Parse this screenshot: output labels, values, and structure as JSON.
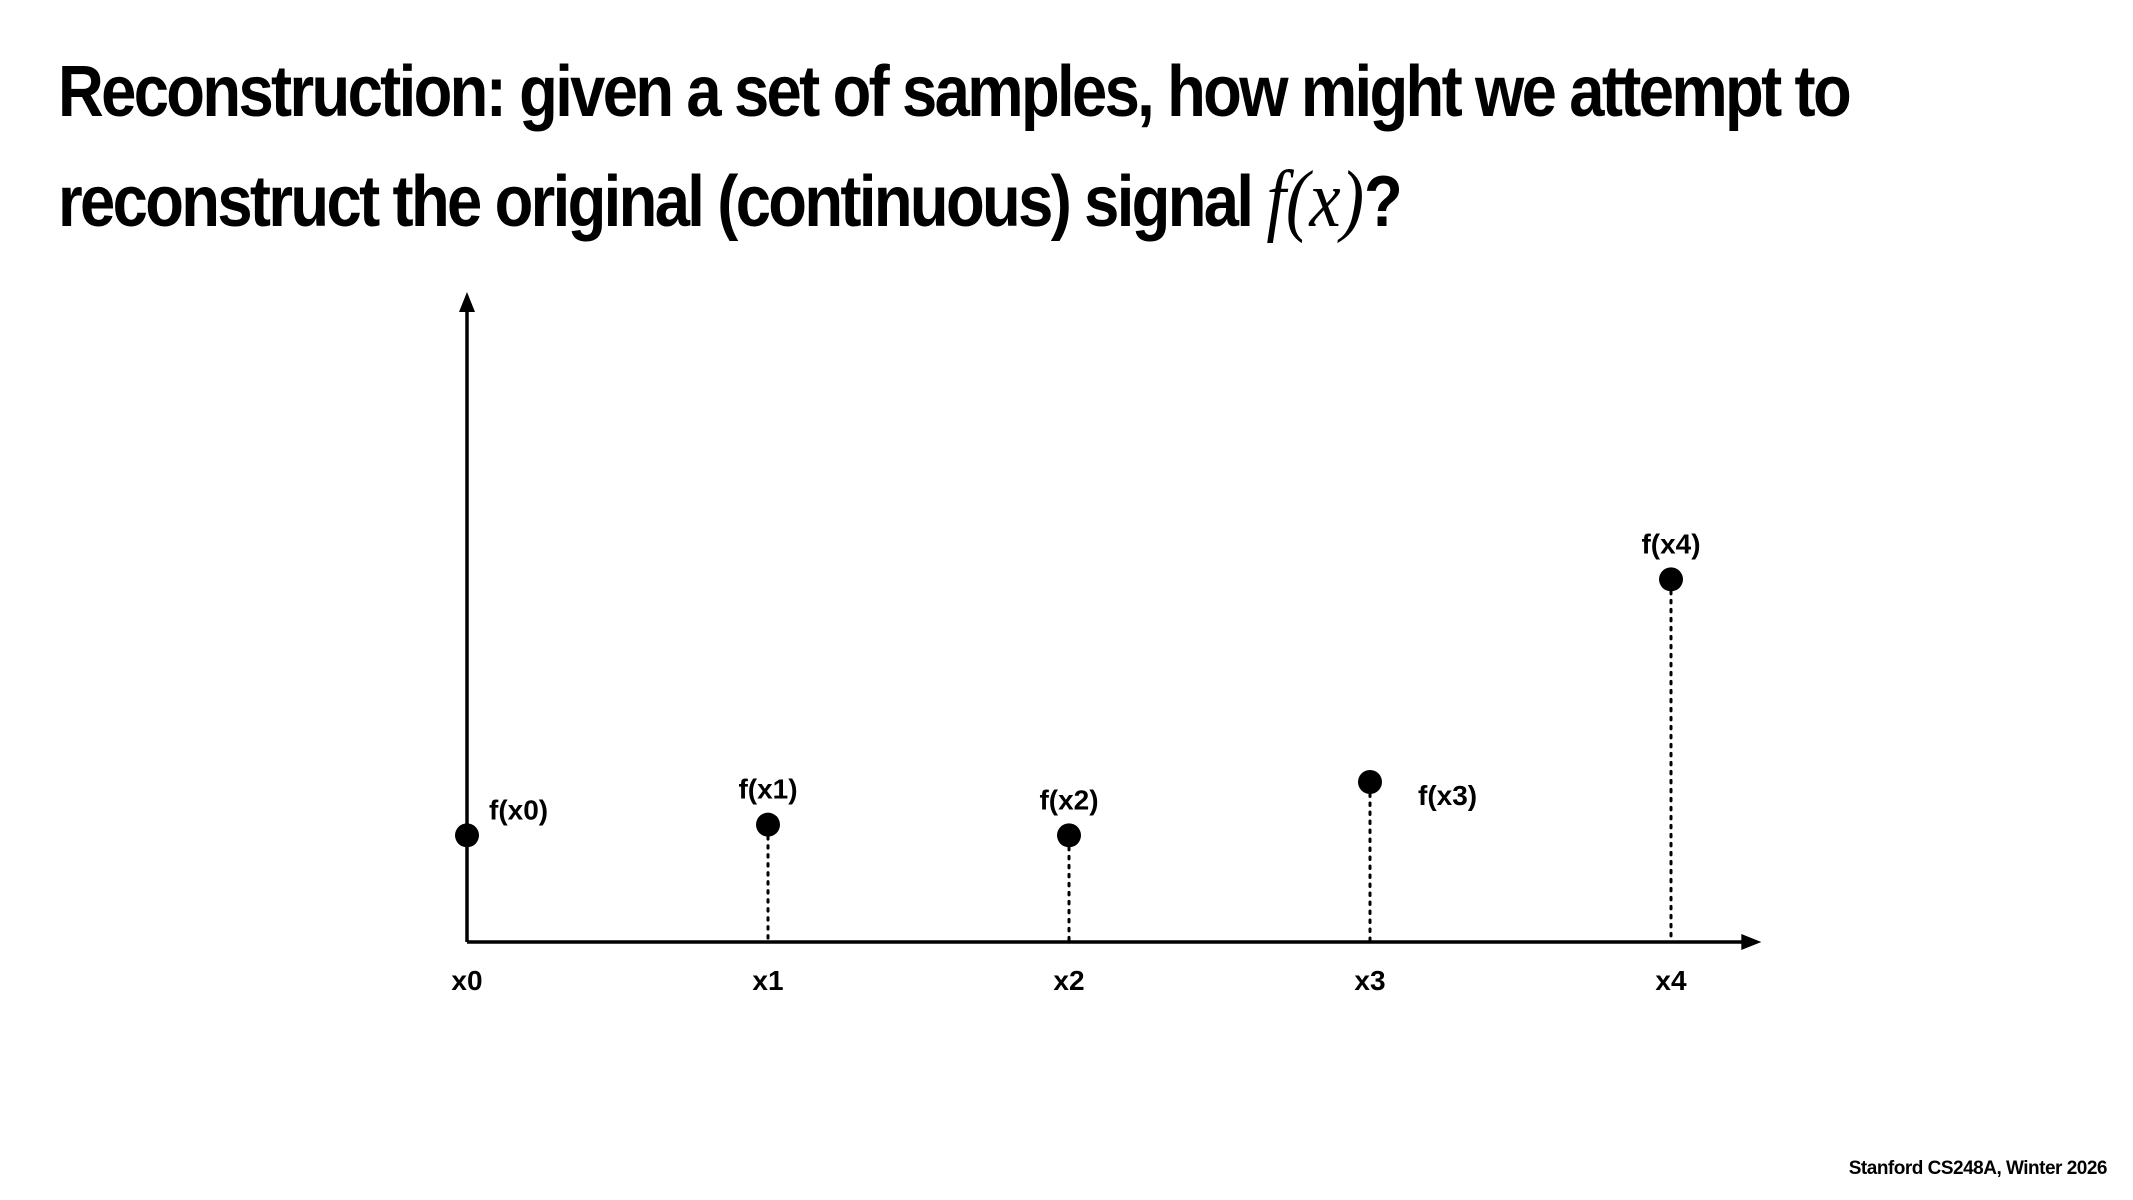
{
  "slide": {
    "title_line1": "Reconstruction: given a set of samples, how might we attempt to",
    "title_line2_prefix": "reconstruct the original (continuous) signal ",
    "title_math": "f(x)",
    "title_line2_suffix": "?",
    "footer": "Stanford CS248A, Winter 2026"
  },
  "chart_data": {
    "type": "scatter",
    "title": "",
    "xlabel": "",
    "ylabel": "",
    "grid": false,
    "legend": "none",
    "x_ticks": [
      "x0",
      "x1",
      "x2",
      "x3",
      "x4"
    ],
    "x": [
      0,
      1,
      2,
      3,
      4
    ],
    "y": [
      1.0,
      1.1,
      1.0,
      1.5,
      3.4
    ],
    "ylim": [
      0,
      6
    ],
    "xlim": [
      0,
      4.3
    ],
    "point_labels": [
      "f(x0)",
      "f(x1)",
      "f(x2)",
      "f(x3)",
      "f(x4)"
    ],
    "point_label_placement": [
      "right",
      "above",
      "above",
      "right",
      "above"
    ],
    "stems": "dotted",
    "stem_on_first_point": false,
    "marker_color": "#000000"
  }
}
